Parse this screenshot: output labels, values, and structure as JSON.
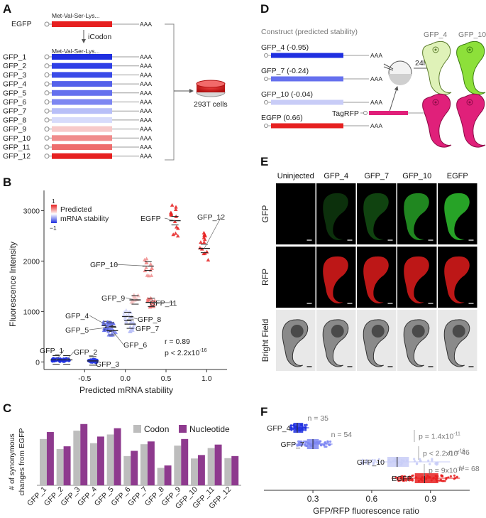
{
  "panels": {
    "a": "A",
    "b": "B",
    "c": "C",
    "d": "D",
    "e": "E",
    "f": "F"
  },
  "panel_a": {
    "egfp_label": "EGFP",
    "seq_text": "Met-Val-Ser-Lys...",
    "polya": "AAA",
    "arrow_label": "iCodon",
    "cells_label": "293T cells",
    "constructs": [
      "GFP_1",
      "GFP_2",
      "GFP_3",
      "GFP_4",
      "GFP_5",
      "GFP_6",
      "GFP_7",
      "GFP_8",
      "GFP_9",
      "GFP_10",
      "GFP_11",
      "GFP_12"
    ],
    "colors": [
      "#1f2fe0",
      "#2f40e6",
      "#3a4be8",
      "#5561ea",
      "#6570ee",
      "#7d86f2",
      "#b8bff8",
      "#d7dbfb",
      "#f7c9c9",
      "#f08c8c",
      "#ee6e6e",
      "#e62020"
    ],
    "egfp_color": "#e62020"
  },
  "chart_data": [
    {
      "type": "scatter",
      "title": "",
      "xlabel": "Predicted mRNA stability",
      "ylabel": "Fluorescence Intensity",
      "xlim": [
        -1.0,
        1.25
      ],
      "ylim": [
        -150,
        3400
      ],
      "xticks": [
        "-0.5",
        "0.0",
        "0.5",
        "1.0"
      ],
      "yticks": [
        "0",
        "1000",
        "2000",
        "3000"
      ],
      "legend_title": "Predicted mRNA stability",
      "legend_top": "1",
      "legend_bottom": "−1",
      "stats": {
        "r": "r = 0.89",
        "p": "p < 2.2x10",
        "p_exp": "-16"
      },
      "groups": [
        {
          "name": "GFP_1",
          "x": -0.85,
          "y": 40,
          "color": "#1f2fe0",
          "marker": "circle"
        },
        {
          "name": "GFP_2",
          "x": -0.72,
          "y": 40,
          "color": "#2233e2",
          "marker": "circle"
        },
        {
          "name": "GFP_3",
          "x": -0.4,
          "y": 20,
          "color": "#2a3be4",
          "marker": "circle"
        },
        {
          "name": "GFP_4",
          "x": -0.22,
          "y": 720,
          "color": "#5561ea",
          "marker": "triangle"
        },
        {
          "name": "GFP_5",
          "x": -0.18,
          "y": 690,
          "color": "#6570ee",
          "marker": "triangle"
        },
        {
          "name": "GFP_6",
          "x": -0.16,
          "y": 620,
          "color": "#7d86f2",
          "marker": "triangle"
        },
        {
          "name": "GFP_7",
          "x": 0.06,
          "y": 750,
          "color": "#b8bff8",
          "marker": "triangle"
        },
        {
          "name": "GFP_8",
          "x": 0.03,
          "y": 900,
          "color": "#d0d4fa",
          "marker": "triangle"
        },
        {
          "name": "GFP_9",
          "x": 0.12,
          "y": 1230,
          "color": "#f5c2c2",
          "marker": "triangle"
        },
        {
          "name": "GFP_10",
          "x": 0.28,
          "y": 1900,
          "color": "#f08c8c",
          "marker": "triangle"
        },
        {
          "name": "GFP_11",
          "x": 0.32,
          "y": 1180,
          "color": "#ee6e6e",
          "marker": "triangle"
        },
        {
          "name": "GFP_12",
          "x": 0.97,
          "y": 2250,
          "color": "#e62020",
          "marker": "triangle"
        },
        {
          "name": "EGFP",
          "x": 0.61,
          "y": 2800,
          "color": "#e62020",
          "marker": "triangle"
        }
      ]
    },
    {
      "type": "bar",
      "title": "",
      "xlabel": "",
      "ylabel": "# of synonymous changes from EGFP",
      "ylim": [
        0,
        200
      ],
      "categories": [
        "GFP_1",
        "GFP_2",
        "GFP_3",
        "GFP_4",
        "GFP_5",
        "GFP_6",
        "GFP_7",
        "GFP_8",
        "GFP_9",
        "GFP_10",
        "GFP_11",
        "GFP_12"
      ],
      "series": [
        {
          "name": "Codon",
          "color": "#bdbdbd",
          "values": [
            133,
            104,
            157,
            121,
            146,
            84,
            118,
            50,
            114,
            77,
            107,
            78
          ]
        },
        {
          "name": "Nucleotide",
          "color": "#8e3a8e",
          "values": [
            153,
            112,
            176,
            140,
            164,
            99,
            126,
            57,
            133,
            87,
            117,
            84
          ]
        }
      ]
    },
    {
      "type": "box",
      "title": "",
      "xlabel": "GFP/RFP fluorescence ratio",
      "ylabel": "",
      "xlim": [
        0.05,
        1.1
      ],
      "xticks": [
        "0.3",
        "0.6",
        "0.9"
      ],
      "groups": [
        {
          "name": "GFP_4",
          "n": "n = 35",
          "median": 0.22,
          "q1": 0.2,
          "q3": 0.25,
          "min": 0.18,
          "max": 0.28,
          "color": "#1f2fe0"
        },
        {
          "name": "GFP_7",
          "n": "n = 54",
          "median": 0.3,
          "q1": 0.27,
          "q3": 0.33,
          "min": 0.2,
          "max": 0.4,
          "color": "#7d86f2"
        },
        {
          "name": "GFP_10",
          "n": "n = 46",
          "median": 0.73,
          "q1": 0.68,
          "q3": 0.79,
          "min": 0.55,
          "max": 1.0,
          "color": "#c8ccf7"
        },
        {
          "name": "EGFP",
          "n": "n = 68",
          "median": 0.87,
          "q1": 0.82,
          "q3": 0.94,
          "min": 0.7,
          "max": 1.05,
          "color": "#e62020"
        }
      ],
      "pvalues": [
        {
          "base": "p = 1.4x10",
          "exp": "-11"
        },
        {
          "base": "p < 2.2x10",
          "exp": "-16"
        },
        {
          "base": "p = 9x10",
          "exp": "-14"
        }
      ]
    }
  ],
  "panel_d": {
    "header": "Construct (predicted stability)",
    "items": [
      {
        "label": "GFP_4 (-0.95)",
        "color": "#1f2fe0"
      },
      {
        "label": "GFP_7 (-0.24)",
        "color": "#6570ee"
      },
      {
        "label": "GFP_10 (-0.04)",
        "color": "#c8ccf7"
      },
      {
        "label": "EGFP (0.66)",
        "color": "#e62020"
      }
    ],
    "tag_label": "TagRFP",
    "tag_color": "#e0207a",
    "time_label": "24h",
    "embryo_labels": [
      "GFP_4",
      "GFP_10"
    ],
    "polya": "AAA"
  },
  "panel_e": {
    "columns": [
      "Uninjected",
      "GFP_4",
      "GFP_7",
      "GFP_10",
      "EGFP"
    ],
    "rows": [
      "GFP",
      "RFP",
      "Bright Field"
    ],
    "gfp_intensity": [
      0.0,
      0.25,
      0.35,
      0.7,
      0.85
    ]
  }
}
